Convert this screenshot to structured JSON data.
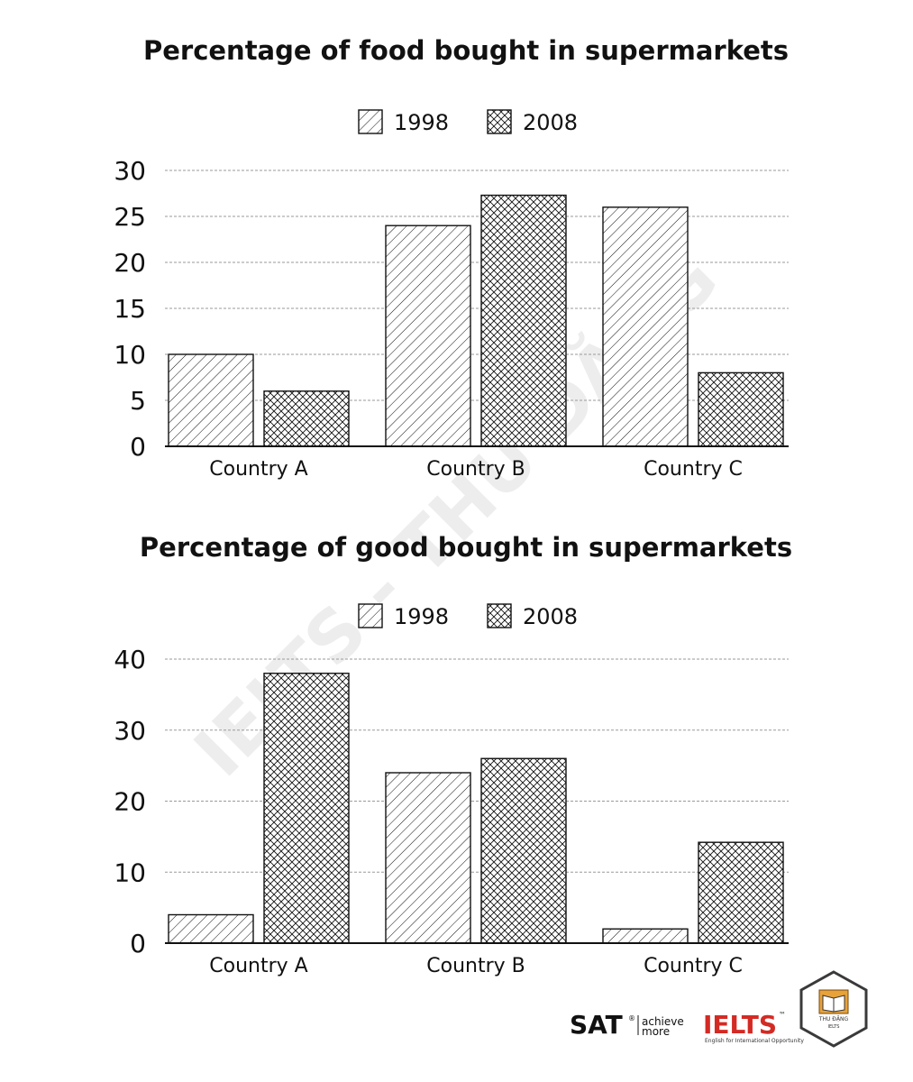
{
  "chart_data": [
    {
      "type": "bar",
      "title": "Percentage of food  bought in supermarkets",
      "categories": [
        "Country A",
        "Country B",
        "Country C"
      ],
      "series": [
        {
          "name": "1998",
          "values": [
            10,
            24,
            26
          ],
          "pattern": "hatch"
        },
        {
          "name": "2008",
          "values": [
            6,
            27.3,
            8
          ],
          "pattern": "crosshatch"
        }
      ],
      "yticks": [
        "0",
        "5",
        "10",
        "15",
        "20",
        "25",
        "30"
      ],
      "ylim": [
        0,
        30
      ],
      "grid": true,
      "legend_position": "top-center"
    },
    {
      "type": "bar",
      "title": "Percentage of good  bought in supermarkets",
      "categories": [
        "Country A",
        "Country B",
        "Country C"
      ],
      "series": [
        {
          "name": "1998",
          "values": [
            4,
            24,
            2
          ],
          "pattern": "hatch"
        },
        {
          "name": "2008",
          "values": [
            38,
            26,
            14.2
          ],
          "pattern": "crosshatch"
        }
      ],
      "yticks": [
        "0",
        "10",
        "20",
        "30",
        "40"
      ],
      "ylim": [
        0,
        40
      ],
      "grid": true,
      "legend_position": "top-center"
    }
  ],
  "watermark": "IELTS - THU ĐẶNG",
  "branding": {
    "sat": "SAT",
    "sat_reg": "®",
    "sat_tag_line1": "achieve",
    "sat_tag_line2": "more",
    "ielts": "IELTS",
    "ielts_tm": "™",
    "ielts_tag": "English for International Opportunity",
    "badge_text": "THU ĐẶNG",
    "badge_sub": "IELTS"
  },
  "colors": {
    "ink": "#111111",
    "grid": "#9a9a9a",
    "ielts_red": "#d42a24",
    "badge_orange": "#e8a23a"
  }
}
